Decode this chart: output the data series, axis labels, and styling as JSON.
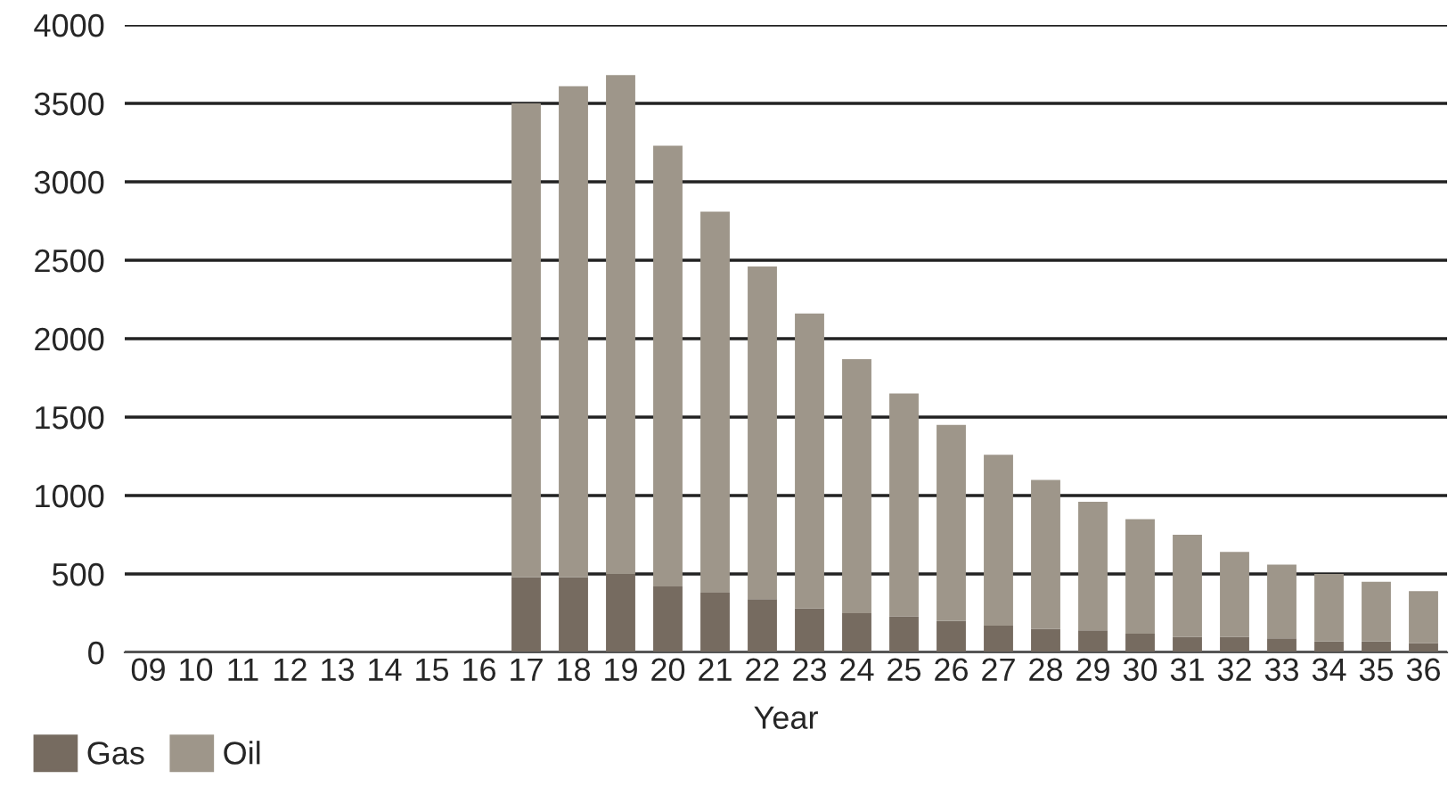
{
  "chart_data": {
    "type": "bar",
    "stacked": true,
    "xlabel": "Year",
    "categories": [
      "09",
      "10",
      "11",
      "12",
      "13",
      "14",
      "15",
      "16",
      "17",
      "18",
      "19",
      "20",
      "21",
      "22",
      "23",
      "24",
      "25",
      "26",
      "27",
      "28",
      "29",
      "30",
      "31",
      "32",
      "33",
      "34",
      "35",
      "36"
    ],
    "series": [
      {
        "name": "Gas",
        "color": "#766b60",
        "values": [
          0,
          0,
          0,
          0,
          0,
          0,
          0,
          0,
          480,
          480,
          500,
          420,
          380,
          340,
          280,
          250,
          230,
          200,
          170,
          150,
          140,
          120,
          100,
          100,
          90,
          70,
          70,
          60
        ]
      },
      {
        "name": "Oil",
        "color": "#9e968a",
        "values": [
          0,
          0,
          0,
          0,
          0,
          0,
          0,
          0,
          3020,
          3130,
          3180,
          2810,
          2430,
          2120,
          1880,
          1620,
          1420,
          1250,
          1090,
          950,
          820,
          730,
          650,
          540,
          470,
          430,
          380,
          330
        ]
      }
    ],
    "ylim": [
      0,
      4000
    ],
    "yticks": [
      0,
      500,
      1000,
      1500,
      2000,
      2500,
      3000,
      3500,
      4000
    ],
    "grid": "y",
    "legend": "bottom left"
  }
}
